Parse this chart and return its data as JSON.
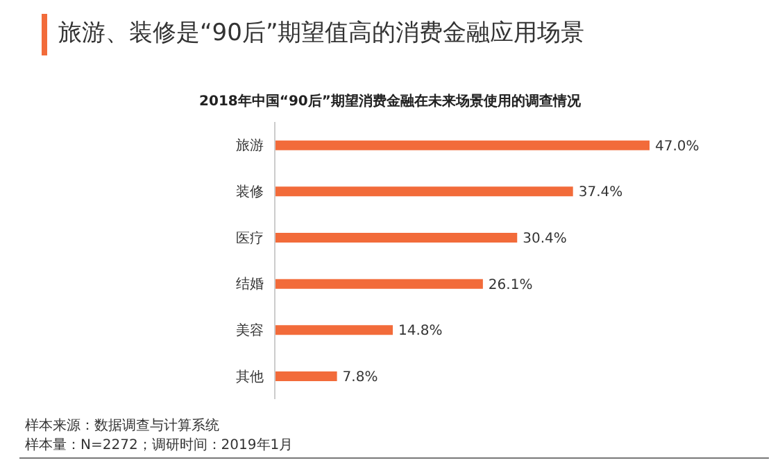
{
  "chart_data": {
    "type": "bar",
    "orientation": "horizontal",
    "title": "旅游、装修是“90后”期望值高的消费金融应用场景",
    "subtitle": "2018年中国“90后”期望消费金融在未来场景使用的调查情况",
    "categories": [
      "旅游",
      "装修",
      "医疗",
      "结婚",
      "美容",
      "其他"
    ],
    "values": [
      47.0,
      37.4,
      30.4,
      26.1,
      14.8,
      7.8
    ],
    "value_labels": [
      "47.0%",
      "37.4%",
      "30.4%",
      "26.1%",
      "14.8%",
      "7.8%"
    ],
    "color": "#f26b3a",
    "annotations": [
      "样本来源：数据调查与计算系统",
      "样本量：N=2272；调研时间：2019年1月"
    ]
  }
}
